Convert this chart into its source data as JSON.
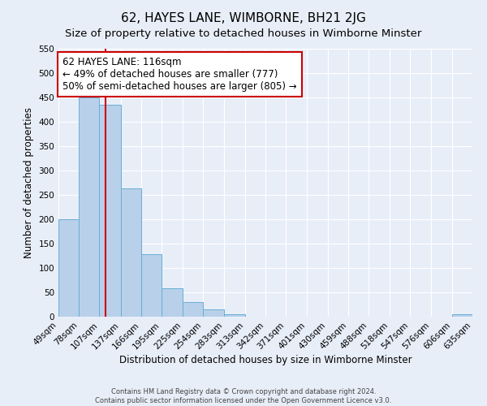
{
  "title": "62, HAYES LANE, WIMBORNE, BH21 2JG",
  "subtitle": "Size of property relative to detached houses in Wimborne Minster",
  "xlabel": "Distribution of detached houses by size in Wimborne Minster",
  "ylabel": "Number of detached properties",
  "footnote1": "Contains HM Land Registry data © Crown copyright and database right 2024.",
  "footnote2": "Contains public sector information licensed under the Open Government Licence v3.0.",
  "bin_edges": [
    49,
    78,
    107,
    137,
    166,
    195,
    225,
    254,
    283,
    313,
    342,
    371,
    401,
    430,
    459,
    488,
    518,
    547,
    576,
    606,
    635
  ],
  "bar_heights": [
    200,
    450,
    435,
    263,
    128,
    58,
    30,
    15,
    5,
    0,
    0,
    0,
    0,
    0,
    0,
    0,
    0,
    0,
    0,
    5
  ],
  "bar_color": "#b8d0ea",
  "bar_edge_color": "#6aaed6",
  "vline_x": 116,
  "vline_color": "#cc0000",
  "annotation_text": "62 HAYES LANE: 116sqm\n← 49% of detached houses are smaller (777)\n50% of semi-detached houses are larger (805) →",
  "annotation_box_color": "#ffffff",
  "annotation_box_edge": "#cc0000",
  "ylim": [
    0,
    550
  ],
  "yticks": [
    0,
    50,
    100,
    150,
    200,
    250,
    300,
    350,
    400,
    450,
    500,
    550
  ],
  "background_color": "#e8eef8",
  "grid_color": "#ffffff",
  "title_fontsize": 11,
  "subtitle_fontsize": 9.5,
  "axis_label_fontsize": 8.5,
  "tick_label_fontsize": 7.5,
  "annotation_fontsize": 8.5
}
